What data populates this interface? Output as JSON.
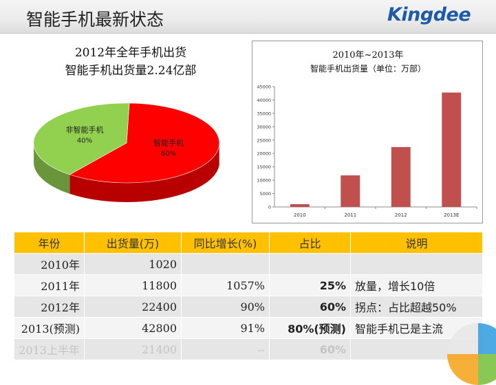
{
  "header": {
    "title": "智能手机最新状态",
    "logo_text": "Kingdee"
  },
  "pie_chart": {
    "title_line1": "2012年全年手机出货",
    "title_line2": "智能手机出货量2.24亿部"
  },
  "bar_chart": {
    "title_line1": "2010年~2013年",
    "title_line2": "智能手机出货量（单位：万部）"
  },
  "chart_data": [
    {
      "type": "pie",
      "categories": [
        "智能手机",
        "非智能手机"
      ],
      "values": [
        60,
        40
      ],
      "labels": [
        "60%",
        "40%"
      ],
      "colors": [
        "#ff0000",
        "#92d050"
      ]
    },
    {
      "type": "bar",
      "title": "2010年~2013年\n智能手机出货量（单位：万部）",
      "categories": [
        "2010",
        "2011",
        "2012",
        "2013E"
      ],
      "values": [
        1020,
        11800,
        22400,
        42800
      ],
      "ylim": [
        0,
        45000
      ],
      "yticks": [
        0,
        5000,
        10000,
        15000,
        20000,
        25000,
        30000,
        35000,
        40000,
        45000
      ],
      "grid": false,
      "color": "#c0504d"
    }
  ],
  "table": {
    "headers": [
      "年份",
      "出货量(万)",
      "同比增长(%)",
      "占比",
      "说明"
    ],
    "rows": [
      [
        "2010年",
        "1020",
        "",
        "",
        ""
      ],
      [
        "2011年",
        "11800",
        "1057%",
        "25%",
        "放量，增长10倍"
      ],
      [
        "2012年",
        "22400",
        "90%",
        "60%",
        "拐点：占比超越50%"
      ],
      [
        "2013(预测)",
        "42800",
        "91%",
        "80%(预测)",
        "智能手机已是主流"
      ],
      [
        "2013上半年",
        "21400",
        "--",
        "60%",
        ""
      ]
    ]
  },
  "colors": {
    "table_header": "#ffc000",
    "pie_smart": "#ff0000",
    "pie_other": "#92d050",
    "bar": "#c0504d",
    "logo": "#1e5aa8"
  }
}
